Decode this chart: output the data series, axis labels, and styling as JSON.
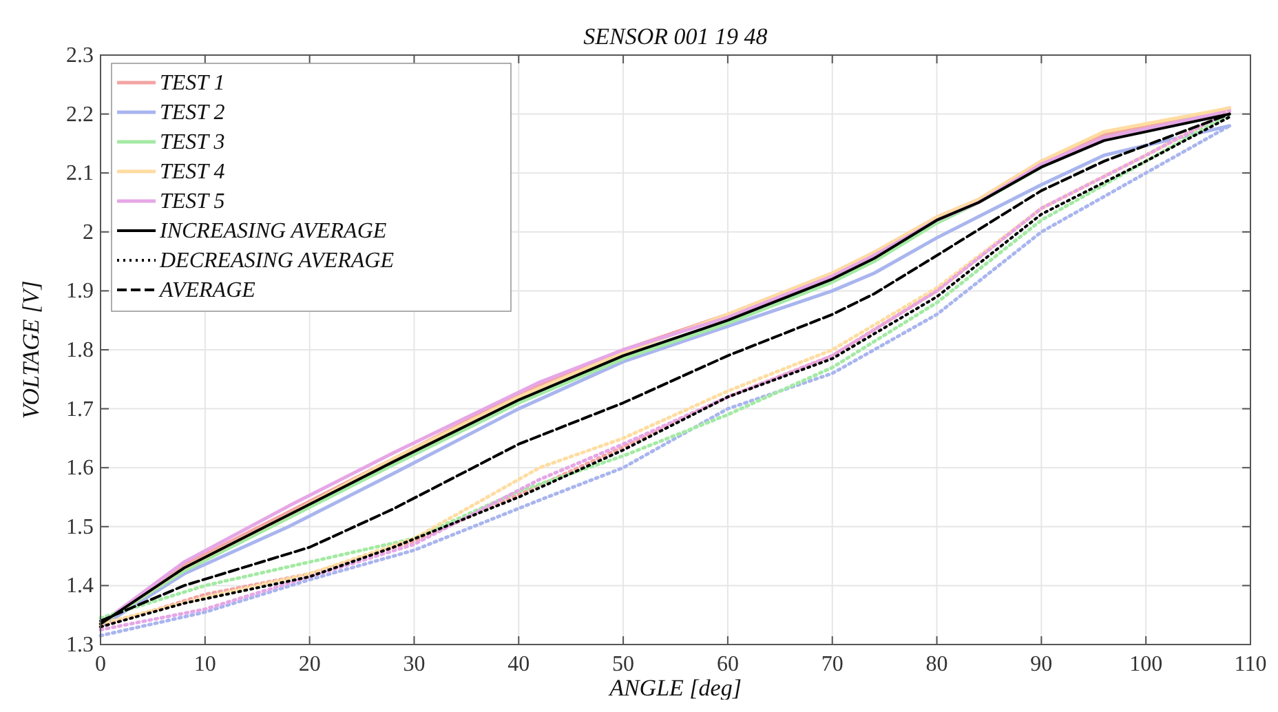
{
  "chart_data": {
    "type": "line",
    "title": "SENSOR 001 19 48",
    "xlabel": "ANGLE [deg]",
    "ylabel": "VOLTAGE [V]",
    "xlim": [
      0,
      110
    ],
    "ylim": [
      1.3,
      2.3
    ],
    "xticks": [
      0,
      10,
      20,
      30,
      40,
      50,
      60,
      70,
      80,
      90,
      100,
      110
    ],
    "yticks": [
      1.3,
      1.4,
      1.5,
      1.6,
      1.7,
      1.8,
      1.9,
      2,
      2.1,
      2.2,
      2.3
    ],
    "grid": true,
    "legend": "top left",
    "series": [
      {
        "name": "TEST 1",
        "color": "#f4a3a3",
        "line_style": "solid",
        "x": [
          0,
          8,
          18,
          28,
          40,
          50,
          60,
          70,
          74,
          80,
          84,
          90,
          96,
          108
        ],
        "values": [
          1.335,
          1.435,
          1.525,
          1.615,
          1.725,
          1.8,
          1.86,
          1.93,
          1.965,
          2.025,
          2.055,
          2.12,
          2.165,
          2.21
        ]
      },
      {
        "name": "TEST 2",
        "color": "#a9b5ee",
        "line_style": "solid",
        "x": [
          0,
          8,
          18,
          28,
          40,
          50,
          60,
          70,
          74,
          80,
          90,
          96,
          108
        ],
        "values": [
          1.33,
          1.42,
          1.5,
          1.59,
          1.7,
          1.78,
          1.84,
          1.9,
          1.93,
          1.99,
          2.08,
          2.13,
          2.18
        ]
      },
      {
        "name": "TEST 3",
        "color": "#a3eaa3",
        "line_style": "solid",
        "x": [
          0,
          8,
          18,
          28,
          40,
          50,
          60,
          70,
          74,
          80,
          84,
          90,
          96,
          108
        ],
        "values": [
          1.335,
          1.425,
          1.515,
          1.605,
          1.71,
          1.785,
          1.845,
          1.915,
          1.95,
          2.015,
          2.05,
          2.11,
          2.16,
          2.205
        ]
      },
      {
        "name": "TEST 4",
        "color": "#ffdca0",
        "line_style": "solid",
        "x": [
          0,
          8,
          18,
          28,
          40,
          50,
          60,
          70,
          74,
          80,
          84,
          90,
          96,
          108
        ],
        "values": [
          1.335,
          1.43,
          1.52,
          1.615,
          1.72,
          1.795,
          1.86,
          1.93,
          1.965,
          2.025,
          2.055,
          2.12,
          2.17,
          2.21
        ]
      },
      {
        "name": "TEST 5",
        "color": "#e6a6e6",
        "line_style": "solid",
        "x": [
          0,
          8,
          18,
          28,
          42,
          50,
          60,
          70,
          74,
          80,
          84,
          90,
          96,
          108
        ],
        "values": [
          1.335,
          1.44,
          1.535,
          1.625,
          1.745,
          1.8,
          1.855,
          1.925,
          1.96,
          2.02,
          2.05,
          2.115,
          2.16,
          2.205
        ]
      },
      {
        "color": "#f4a3a3",
        "line_style": "dotted",
        "x": [
          0,
          10,
          20,
          30,
          42,
          50,
          60,
          70,
          80,
          90,
          100,
          108
        ],
        "values": [
          1.33,
          1.385,
          1.42,
          1.475,
          1.57,
          1.635,
          1.72,
          1.79,
          1.9,
          2.04,
          2.13,
          2.205
        ]
      },
      {
        "color": "#a9b5ee",
        "line_style": "dotted",
        "x": [
          0,
          10,
          20,
          30,
          42,
          50,
          60,
          70,
          80,
          90,
          100,
          108
        ],
        "values": [
          1.315,
          1.355,
          1.41,
          1.46,
          1.545,
          1.6,
          1.7,
          1.76,
          1.86,
          2.0,
          2.1,
          2.18
        ]
      },
      {
        "color": "#a3eaa3",
        "line_style": "dotted",
        "x": [
          0,
          10,
          20,
          30,
          40,
          50,
          60,
          70,
          80,
          90,
          100,
          108
        ],
        "values": [
          1.345,
          1.4,
          1.44,
          1.48,
          1.56,
          1.62,
          1.69,
          1.77,
          1.88,
          2.02,
          2.12,
          2.2
        ]
      },
      {
        "color": "#ffdca0",
        "line_style": "dotted",
        "x": [
          0,
          10,
          20,
          30,
          42,
          50,
          60,
          70,
          80,
          90,
          100,
          108
        ],
        "values": [
          1.335,
          1.38,
          1.42,
          1.48,
          1.6,
          1.65,
          1.73,
          1.8,
          1.905,
          2.04,
          2.13,
          2.205
        ]
      },
      {
        "color": "#e6a6e6",
        "line_style": "dotted",
        "x": [
          0,
          10,
          20,
          30,
          42,
          50,
          60,
          70,
          80,
          90,
          100,
          108
        ],
        "values": [
          1.325,
          1.36,
          1.415,
          1.47,
          1.58,
          1.64,
          1.72,
          1.79,
          1.9,
          2.04,
          2.13,
          2.205
        ]
      },
      {
        "name": "INCREASING AVERAGE",
        "color": "#000000",
        "line_style": "solid",
        "x": [
          0,
          8,
          18,
          28,
          40,
          50,
          60,
          70,
          74,
          80,
          84,
          90,
          96,
          108
        ],
        "values": [
          1.335,
          1.43,
          1.52,
          1.61,
          1.715,
          1.79,
          1.85,
          1.92,
          1.955,
          2.02,
          2.05,
          2.11,
          2.155,
          2.2
        ]
      },
      {
        "name": "DECREASING AVERAGE",
        "color": "#000000",
        "line_style": "dotted",
        "x": [
          0,
          8,
          20,
          28,
          40,
          50,
          60,
          70,
          80,
          90,
          100,
          108
        ],
        "values": [
          1.33,
          1.37,
          1.415,
          1.465,
          1.55,
          1.63,
          1.72,
          1.785,
          1.89,
          2.03,
          2.12,
          2.195
        ]
      },
      {
        "name": "AVERAGE",
        "color": "#000000",
        "line_style": "dashed",
        "x": [
          0,
          8,
          20,
          28,
          40,
          50,
          60,
          70,
          74,
          80,
          90,
          96,
          108
        ],
        "values": [
          1.34,
          1.4,
          1.465,
          1.53,
          1.64,
          1.71,
          1.79,
          1.86,
          1.895,
          1.96,
          2.07,
          2.12,
          2.2
        ]
      }
    ]
  }
}
